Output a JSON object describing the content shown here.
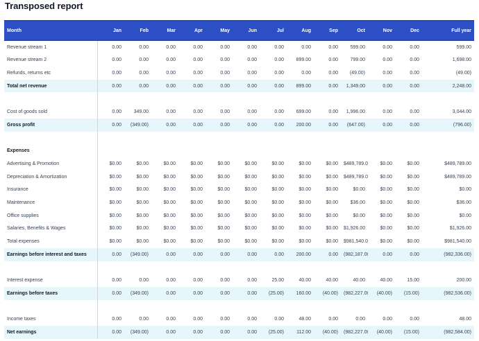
{
  "page": {
    "title": "Transposed report"
  },
  "report": {
    "header_label": "Month",
    "months": [
      "Jan",
      "Feb",
      "Mar",
      "Apr",
      "May",
      "Jun",
      "Jul",
      "Aug",
      "Sep",
      "Oct",
      "Nov",
      "Dec"
    ],
    "full_year_label": "Full year",
    "rows": [
      {
        "type": "data",
        "label": "Revenue stream 1",
        "values": [
          "0.00",
          "0.00",
          "0.00",
          "0.00",
          "0.00",
          "0.00",
          "0.00",
          "0.00",
          "0.00",
          "599.00",
          "0.00",
          "0.00"
        ],
        "full_year": "599.00"
      },
      {
        "type": "data",
        "label": "Revenue stream 2",
        "values": [
          "0.00",
          "0.00",
          "0.00",
          "0.00",
          "0.00",
          "0.00",
          "0.00",
          "899.00",
          "0.00",
          "799.00",
          "0.00",
          "0.00"
        ],
        "full_year": "1,698.00"
      },
      {
        "type": "data",
        "label": "Refunds, returns etc",
        "values": [
          "0.00",
          "0.00",
          "0.00",
          "0.00",
          "0.00",
          "0.00",
          "0.00",
          "0.00",
          "0.00",
          "(49.00)",
          "0.00",
          "0.00"
        ],
        "full_year": "(49.00)"
      },
      {
        "type": "total",
        "label": "Total net revenue",
        "values": [
          "0.00",
          "0.00",
          "0.00",
          "0.00",
          "0.00",
          "0.00",
          "0.00",
          "899.00",
          "0.00",
          "1,349.00",
          "0.00",
          "0.00"
        ],
        "full_year": "2,248.00"
      },
      {
        "type": "blank",
        "label": "",
        "values": [
          "",
          "",
          "",
          "",
          "",
          "",
          "",
          "",
          "",
          "",
          "",
          ""
        ],
        "full_year": ""
      },
      {
        "type": "data",
        "label": "Cost of goods sold",
        "values": [
          "0.00",
          "349.00",
          "0.00",
          "0.00",
          "0.00",
          "0.00",
          "0.00",
          "699.00",
          "0.00",
          "1,996.00",
          "0.00",
          "0.00"
        ],
        "full_year": "3,044.00"
      },
      {
        "type": "total",
        "label": "Gross profit",
        "values": [
          "0.00",
          "(349.00)",
          "0.00",
          "0.00",
          "0.00",
          "0.00",
          "0.00",
          "200.00",
          "0.00",
          "(647.00)",
          "0.00",
          "0.00"
        ],
        "full_year": "(796.00)"
      },
      {
        "type": "blank",
        "label": "",
        "values": [
          "",
          "",
          "",
          "",
          "",
          "",
          "",
          "",
          "",
          "",
          "",
          ""
        ],
        "full_year": ""
      },
      {
        "type": "section",
        "label": "Expenses",
        "values": [
          "",
          "",
          "",
          "",
          "",
          "",
          "",
          "",
          "",
          "",
          "",
          ""
        ],
        "full_year": ""
      },
      {
        "type": "data",
        "label": "Advertising & Promotion",
        "values": [
          "$0.00",
          "$0.00",
          "$0.00",
          "$0.00",
          "$0.00",
          "$0.00",
          "$0.00",
          "$0.00",
          "$0.00",
          "$489,789.0",
          "$0.00",
          "$0.00"
        ],
        "full_year": "$489,789.00"
      },
      {
        "type": "data",
        "label": "Depreciation & Amortization",
        "values": [
          "$0.00",
          "$0.00",
          "$0.00",
          "$0.00",
          "$0.00",
          "$0.00",
          "$0.00",
          "$0.00",
          "$0.00",
          "$489,789.0",
          "$0.00",
          "$0.00"
        ],
        "full_year": "$489,789.00"
      },
      {
        "type": "data",
        "label": "Insurance",
        "values": [
          "$0.00",
          "$0.00",
          "$0.00",
          "$0.00",
          "$0.00",
          "$0.00",
          "$0.00",
          "$0.00",
          "$0.00",
          "$0.00",
          "$0.00",
          "$0.00"
        ],
        "full_year": "$0.00"
      },
      {
        "type": "data",
        "label": "Maintenance",
        "values": [
          "$0.00",
          "$0.00",
          "$0.00",
          "$0.00",
          "$0.00",
          "$0.00",
          "$0.00",
          "$0.00",
          "$0.00",
          "$36.00",
          "$0.00",
          "$0.00"
        ],
        "full_year": "$36.00"
      },
      {
        "type": "data",
        "label": "Office supplies",
        "values": [
          "$0.00",
          "$0.00",
          "$0.00",
          "$0.00",
          "$0.00",
          "$0.00",
          "$0.00",
          "$0.00",
          "$0.00",
          "$0.00",
          "$0.00",
          "$0.00"
        ],
        "full_year": "$0.00"
      },
      {
        "type": "data",
        "label": "Salaries, Benefits & Wages",
        "values": [
          "$0.00",
          "$0.00",
          "$0.00",
          "$0.00",
          "$0.00",
          "$0.00",
          "$0.00",
          "$0.00",
          "$0.00",
          "$1,926.00",
          "$0.00",
          "$0.00"
        ],
        "full_year": "$1,926.00"
      },
      {
        "type": "data",
        "label": "Total expenses",
        "values": [
          "$0.00",
          "$0.00",
          "$0.00",
          "$0.00",
          "$0.00",
          "$0.00",
          "$0.00",
          "$0.00",
          "$0.00",
          "$981,540.0",
          "$0.00",
          "$0.00"
        ],
        "full_year": "$981,540.00"
      },
      {
        "type": "total",
        "label": "Earnings before interest and taxes",
        "values": [
          "0.00",
          "(349.00)",
          "0.00",
          "0.00",
          "0.00",
          "0.00",
          "0.00",
          "200.00",
          "0.00",
          "(982,187.00",
          "0.00",
          "0.00"
        ],
        "full_year": "(982,336.00)"
      },
      {
        "type": "blank",
        "label": "",
        "values": [
          "",
          "",
          "",
          "",
          "",
          "",
          "",
          "",
          "",
          "",
          "",
          ""
        ],
        "full_year": ""
      },
      {
        "type": "data",
        "label": "Interest expense",
        "values": [
          "0.00",
          "0.00",
          "0.00",
          "0.00",
          "0.00",
          "0.00",
          "25.00",
          "40.00",
          "40.00",
          "40.00",
          "40.00",
          "15.00"
        ],
        "full_year": "200.00"
      },
      {
        "type": "total",
        "label": "Earnings before taxes",
        "values": [
          "0.00",
          "(349.00)",
          "0.00",
          "0.00",
          "0.00",
          "0.00",
          "(25.00)",
          "160.00",
          "(40.00)",
          "(982,227.00",
          "(40.00)",
          "(15.00)"
        ],
        "full_year": "(982,536.00)"
      },
      {
        "type": "blank",
        "label": "",
        "values": [
          "",
          "",
          "",
          "",
          "",
          "",
          "",
          "",
          "",
          "",
          "",
          ""
        ],
        "full_year": ""
      },
      {
        "type": "data",
        "label": "Income taxes",
        "values": [
          "0.00",
          "0.00",
          "0.00",
          "0.00",
          "0.00",
          "0.00",
          "0.00",
          "48.00",
          "0.00",
          "0.00",
          "0.00",
          "0.00"
        ],
        "full_year": "48.00"
      },
      {
        "type": "total",
        "label": "Net earnings",
        "values": [
          "0.00",
          "(349.00)",
          "0.00",
          "0.00",
          "0.00",
          "0.00",
          "(25.00)",
          "112.00",
          "(40.00)",
          "(982,227.00",
          "(40.00)",
          "(15.00)"
        ],
        "full_year": "(982,584.00)"
      }
    ]
  }
}
